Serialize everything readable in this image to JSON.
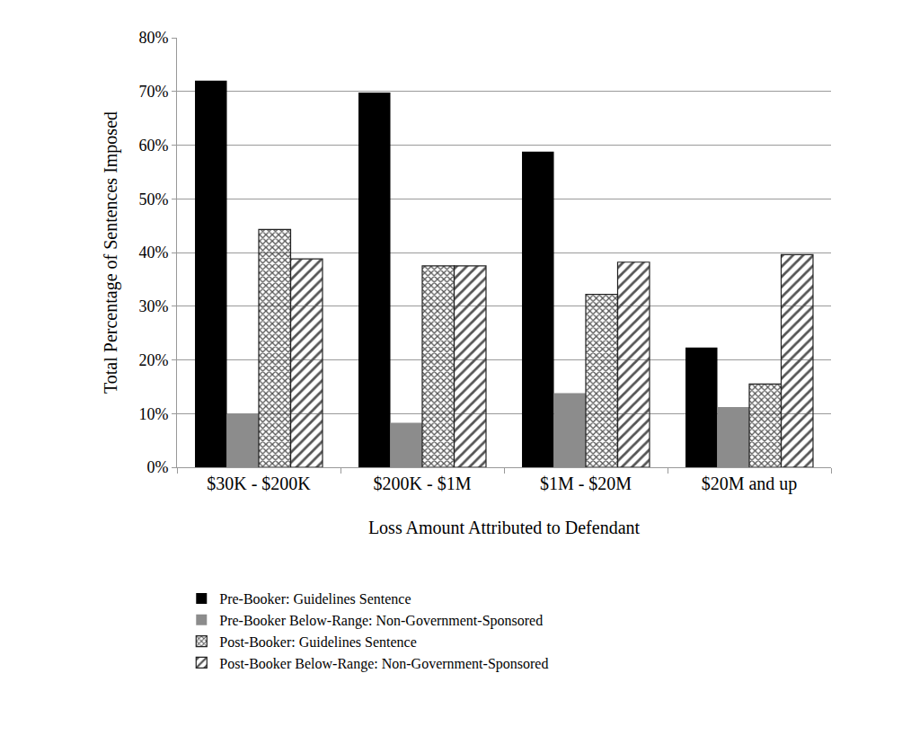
{
  "chart_data": {
    "type": "bar",
    "x_label": "Loss Amount Attributed to Defendant",
    "y_label": "Total Percentage of Sentences Imposed",
    "categories": [
      "$30K - $200K",
      "$200K - $1M",
      "$1M - $20M",
      "$20M and up"
    ],
    "series": [
      {
        "name": "Pre-Booker: Guidelines Sentence",
        "color": "#000000",
        "marker": "solid",
        "values": [
          72,
          69.8,
          58.8,
          22.3
        ]
      },
      {
        "name": "Pre-Booker Below-Range: Non-Government-Sponsored",
        "color": "#8c8c8c",
        "marker": "solid",
        "values": [
          10,
          8.3,
          13.8,
          11.2
        ]
      },
      {
        "name": "Post-Booker: Guidelines Sentence",
        "color": "#ffffff",
        "marker": "checked",
        "values": [
          44.3,
          37.5,
          32.2,
          15.5
        ]
      },
      {
        "name": "Post-Booker Below-Range: Non-Government-Sponsored",
        "color": "#ffffff",
        "marker": "striped",
        "values": [
          38.8,
          37.5,
          38.2,
          39.6
        ]
      }
    ],
    "ylim": [
      0,
      80
    ],
    "yticks": [
      {
        "value": 0,
        "label": "0%"
      },
      {
        "value": 10,
        "label": "10%"
      },
      {
        "value": 20,
        "label": "20%"
      },
      {
        "value": 30,
        "label": "30%"
      },
      {
        "value": 40,
        "label": "40%"
      },
      {
        "value": 50,
        "label": "50%"
      },
      {
        "value": 60,
        "label": "60%"
      },
      {
        "value": 70,
        "label": "70%"
      },
      {
        "value": 80,
        "label": "80%"
      }
    ],
    "grid": true,
    "legend": "bottom"
  }
}
